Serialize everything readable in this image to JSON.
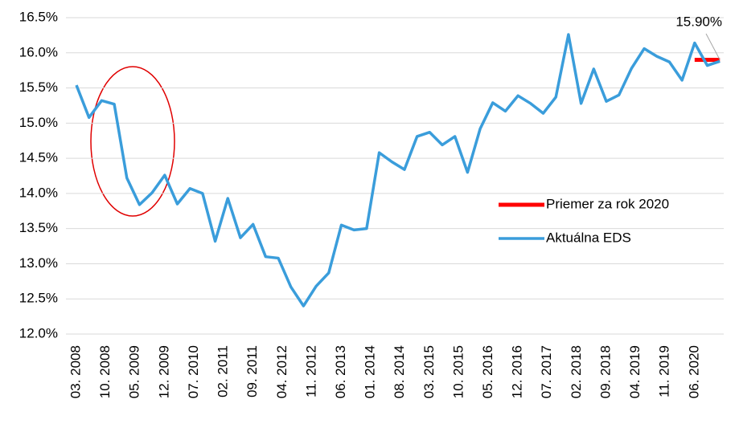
{
  "chart_data": {
    "type": "line",
    "annotation": "15.90%",
    "ylim": [
      12.0,
      16.5
    ],
    "yticks": [
      {
        "value": 12.0,
        "label": "12.0%"
      },
      {
        "value": 12.5,
        "label": "12.5%"
      },
      {
        "value": 13.0,
        "label": "13.0%"
      },
      {
        "value": 13.5,
        "label": "13.5%"
      },
      {
        "value": 14.0,
        "label": "14.0%"
      },
      {
        "value": 14.5,
        "label": "14.5%"
      },
      {
        "value": 15.0,
        "label": "15.0%"
      },
      {
        "value": 15.5,
        "label": "15.5%"
      },
      {
        "value": 16.0,
        "label": "16.0%"
      },
      {
        "value": 16.5,
        "label": "16.5%"
      }
    ],
    "xticks": [
      "03. 2008",
      "10. 2008",
      "05. 2009",
      "12. 2009",
      "07. 2010",
      "02. 2011",
      "09. 2011",
      "04. 2012",
      "11. 2012",
      "06. 2013",
      "01. 2014",
      "08. 2014",
      "03. 2015",
      "10. 2015",
      "05. 2016",
      "12. 2016",
      "07. 2017",
      "02. 2018",
      "09. 2018",
      "04. 2019",
      "11. 2019",
      "06. 2020"
    ],
    "grid": true,
    "legend": "right",
    "series": [
      {
        "name": "Priemer za rok 2020",
        "color": "#ff0000",
        "x": [
          "06. 2020",
          "09. 2020",
          "12. 2020"
        ],
        "values": [
          15.9,
          15.9,
          15.9
        ]
      },
      {
        "name": "Aktuálna EDS",
        "color": "#3a9ddb",
        "x": [
          "03. 2008",
          "06. 2008",
          "09. 2008",
          "12. 2008",
          "03. 2009",
          "06. 2009",
          "09. 2009",
          "12. 2009",
          "03. 2010",
          "06. 2010",
          "09. 2010",
          "12. 2010",
          "03. 2011",
          "06. 2011",
          "09. 2011",
          "12. 2011",
          "03. 2012",
          "06. 2012",
          "09. 2012",
          "12. 2012",
          "03. 2013",
          "06. 2013",
          "09. 2013",
          "12. 2013",
          "03. 2014",
          "06. 2014",
          "09. 2014",
          "12. 2014",
          "03. 2015",
          "06. 2015",
          "09. 2015",
          "12. 2015",
          "03. 2016",
          "06. 2016",
          "09. 2016",
          "12. 2016",
          "03. 2017",
          "06. 2017",
          "09. 2017",
          "12. 2017",
          "03. 2018",
          "06. 2018",
          "09. 2018",
          "12. 2018",
          "03. 2019",
          "06. 2019",
          "09. 2019",
          "12. 2019",
          "03. 2020",
          "06. 2020",
          "09. 2020",
          "12. 2020"
        ],
        "values": [
          15.54,
          15.08,
          15.32,
          15.27,
          14.22,
          13.84,
          14.01,
          14.26,
          13.85,
          14.07,
          14.0,
          13.32,
          13.93,
          13.37,
          13.56,
          13.1,
          13.08,
          12.67,
          12.4,
          12.68,
          12.87,
          13.55,
          13.48,
          13.5,
          14.58,
          14.45,
          14.34,
          14.81,
          14.87,
          14.69,
          14.81,
          14.3,
          14.92,
          15.29,
          15.17,
          15.39,
          15.28,
          15.14,
          15.37,
          16.26,
          15.28,
          15.77,
          15.31,
          15.4,
          15.78,
          16.06,
          15.95,
          15.87,
          15.61,
          16.14,
          15.82,
          15.88
        ]
      }
    ]
  }
}
